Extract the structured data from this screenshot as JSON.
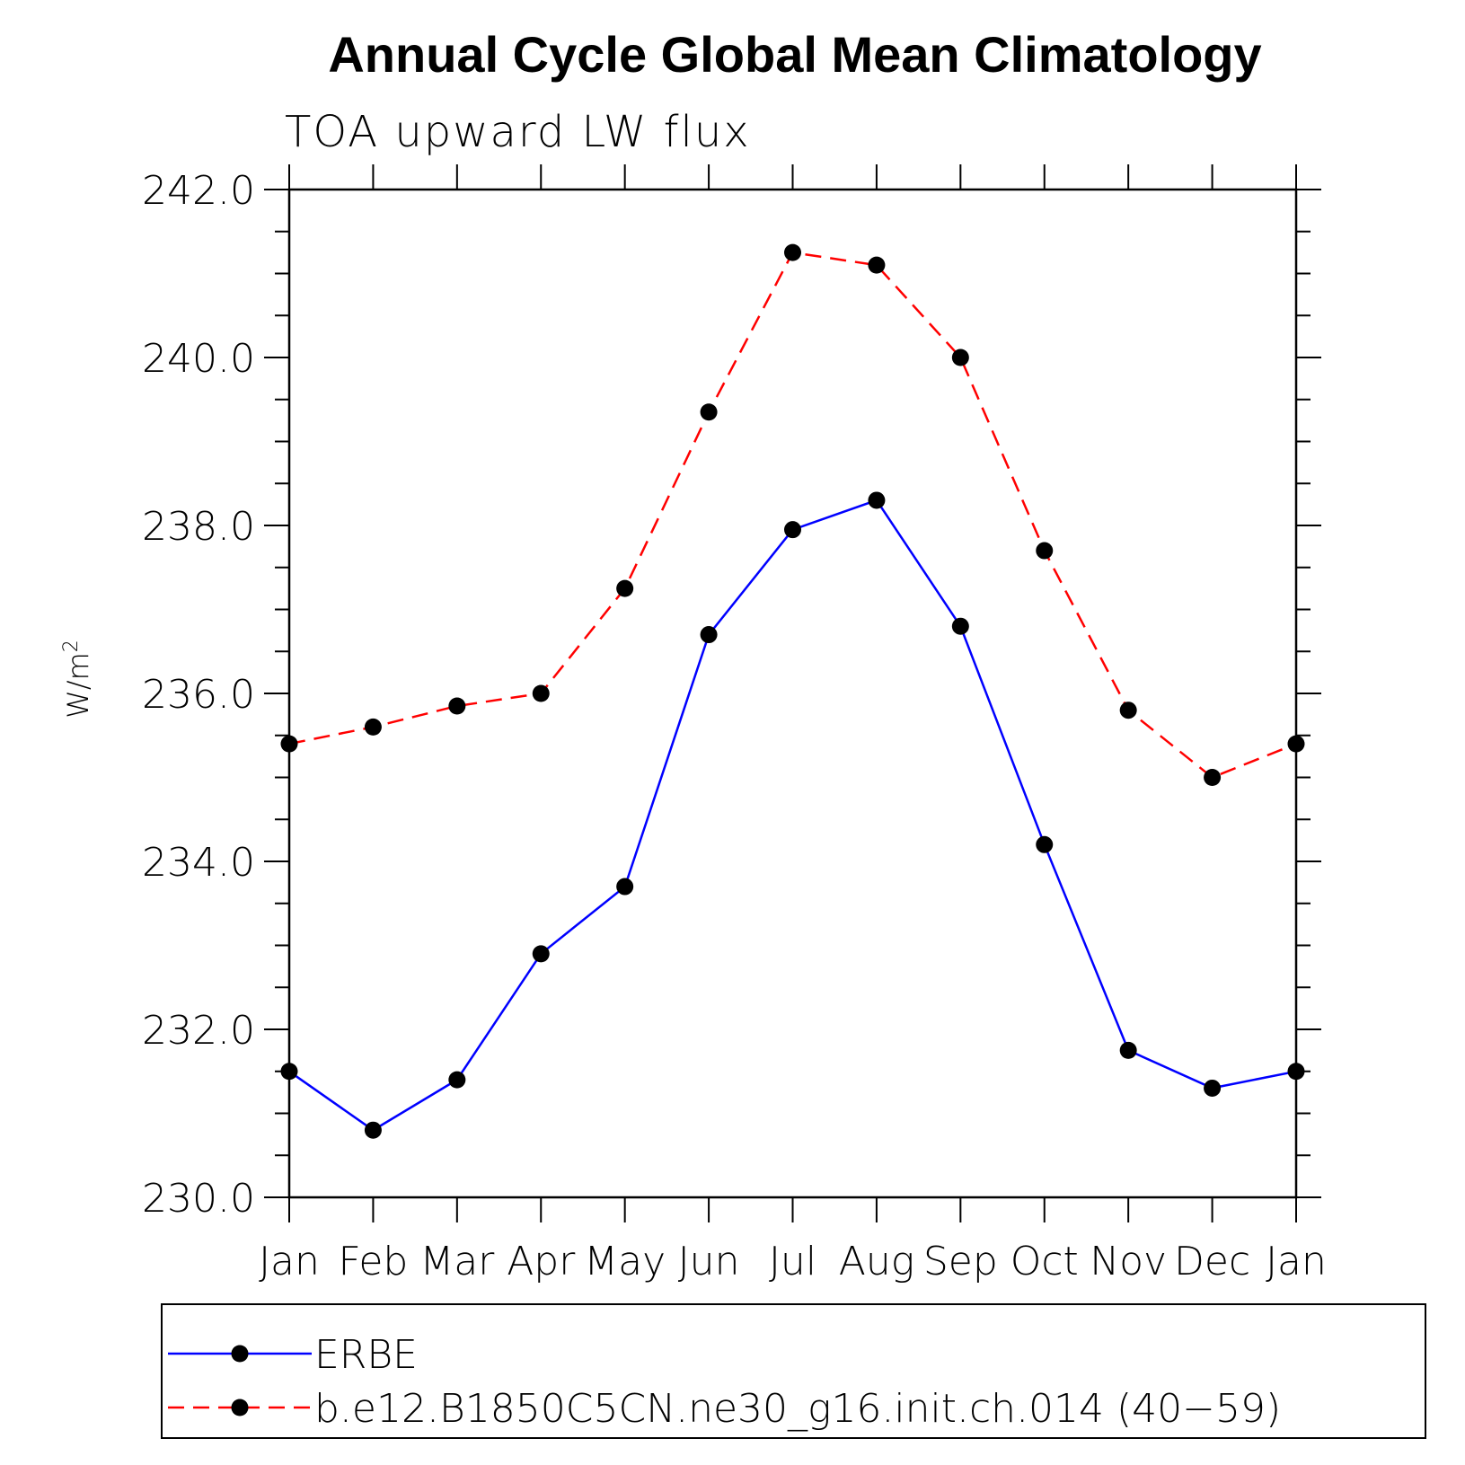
{
  "chart_data": {
    "type": "line",
    "title": "Annual Cycle Global Mean Climatology",
    "subtitle": "TOA upward LW flux",
    "xlabel": "",
    "ylabel": "W/m",
    "ylabel_superscript": "2",
    "categories": [
      "Jan",
      "Feb",
      "Mar",
      "Apr",
      "May",
      "Jun",
      "Jul",
      "Aug",
      "Sep",
      "Oct",
      "Nov",
      "Dec",
      "Jan"
    ],
    "ylim": [
      230.0,
      242.0
    ],
    "yticks": [
      "230.0",
      "232.0",
      "234.0",
      "236.0",
      "238.0",
      "240.0",
      "242.0"
    ],
    "series": [
      {
        "name": "ERBE",
        "color": "#0000ff",
        "style": "solid",
        "values": [
          231.5,
          230.8,
          231.4,
          232.9,
          233.7,
          236.7,
          237.95,
          238.3,
          236.8,
          234.2,
          231.75,
          231.3,
          231.5
        ]
      },
      {
        "name": "b.e12.B1850C5CN.ne30_g16.init.ch.014 (40−59)",
        "color": "#ff0000",
        "style": "dashed",
        "values": [
          235.4,
          235.6,
          235.85,
          236.0,
          237.25,
          239.35,
          241.25,
          241.1,
          240.0,
          237.7,
          235.8,
          235.0,
          235.4
        ]
      }
    ],
    "marker_color": "#000000",
    "grid": false,
    "legend_position": "bottom"
  }
}
